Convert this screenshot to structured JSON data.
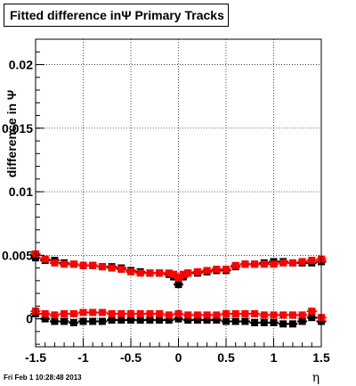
{
  "title": "Fitted difference inΨ   Primary Tracks",
  "footer": "Fri Feb  1 10:28:48 2013",
  "chart_data": {
    "type": "scatter",
    "title": "Fitted difference inΨ   Primary Tracks",
    "xlabel": "η",
    "ylabel": "difference in Ψ",
    "xlim": [
      -1.5,
      1.5
    ],
    "ylim": [
      -0.0022,
      0.022
    ],
    "x_ticks": [
      "-1.5",
      "-1",
      "-0.5",
      "0",
      "0.5",
      "1",
      "1.5"
    ],
    "y_ticks": [
      "0",
      "0.005",
      "0.01",
      "0.015",
      "0.02"
    ],
    "grid": true,
    "series": [
      {
        "color": "#000000",
        "role": "mean",
        "x": [
          -1.5,
          -1.4,
          -1.3,
          -1.2,
          -1.1,
          -1.0,
          -0.9,
          -0.8,
          -0.7,
          -0.6,
          -0.5,
          -0.4,
          -0.3,
          -0.2,
          -0.1,
          -0.05,
          0.0,
          0.05,
          0.1,
          0.2,
          0.3,
          0.4,
          0.5,
          0.6,
          0.7,
          0.8,
          0.9,
          1.0,
          1.1,
          1.2,
          1.3,
          1.4,
          1.5
        ],
        "y": [
          0.0048,
          0.0046,
          0.0046,
          0.0044,
          0.0043,
          0.0042,
          0.0042,
          0.0041,
          0.0041,
          0.004,
          0.0038,
          0.0037,
          0.0036,
          0.0036,
          0.0035,
          0.0033,
          0.0027,
          0.0033,
          0.0036,
          0.0036,
          0.0037,
          0.0038,
          0.0038,
          0.0041,
          0.0043,
          0.0043,
          0.0044,
          0.0045,
          0.0045,
          0.0044,
          0.0044,
          0.0044,
          0.0045
        ]
      },
      {
        "color": "#ff0000",
        "role": "mean",
        "x": [
          -1.5,
          -1.4,
          -1.3,
          -1.2,
          -1.1,
          -1.0,
          -0.9,
          -0.8,
          -0.7,
          -0.6,
          -0.5,
          -0.4,
          -0.3,
          -0.2,
          -0.1,
          -0.05,
          0.0,
          0.05,
          0.1,
          0.2,
          0.3,
          0.4,
          0.5,
          0.6,
          0.7,
          0.8,
          0.9,
          1.0,
          1.1,
          1.2,
          1.3,
          1.4,
          1.5
        ],
        "y": [
          0.0051,
          0.0047,
          0.0044,
          0.0043,
          0.0043,
          0.0042,
          0.0042,
          0.0041,
          0.004,
          0.0039,
          0.0037,
          0.0036,
          0.0036,
          0.0036,
          0.0036,
          0.0035,
          0.0032,
          0.0035,
          0.0036,
          0.0037,
          0.0038,
          0.0039,
          0.0039,
          0.0042,
          0.0043,
          0.0043,
          0.0043,
          0.0043,
          0.0044,
          0.0044,
          0.0045,
          0.0046,
          0.0047
        ]
      },
      {
        "color": "#000000",
        "role": "width",
        "x": [
          -1.5,
          -1.4,
          -1.3,
          -1.2,
          -1.1,
          -1.0,
          -0.9,
          -0.8,
          -0.7,
          -0.6,
          -0.5,
          -0.4,
          -0.3,
          -0.2,
          -0.1,
          0.0,
          0.1,
          0.2,
          0.3,
          0.4,
          0.5,
          0.6,
          0.7,
          0.8,
          0.9,
          1.0,
          1.1,
          1.2,
          1.3,
          1.4,
          1.5
        ],
        "y": [
          0.0004,
          0.0,
          -0.0002,
          -0.0002,
          -0.0003,
          -0.0002,
          -0.0002,
          -0.0002,
          -0.0001,
          -0.0001,
          -0.0001,
          -0.0001,
          -0.0001,
          -0.0001,
          -0.0001,
          0.0,
          -0.0001,
          -0.0001,
          -0.0001,
          -0.0001,
          -0.0002,
          -0.0002,
          -0.0002,
          -0.0003,
          -0.0003,
          -0.0003,
          -0.0004,
          -0.0004,
          -0.0002,
          0.0001,
          -0.0002
        ]
      },
      {
        "color": "#ff0000",
        "role": "width",
        "x": [
          -1.5,
          -1.4,
          -1.3,
          -1.2,
          -1.1,
          -1.0,
          -0.9,
          -0.8,
          -0.7,
          -0.6,
          -0.5,
          -0.4,
          -0.3,
          -0.2,
          -0.1,
          0.0,
          0.1,
          0.2,
          0.3,
          0.4,
          0.5,
          0.6,
          0.7,
          0.8,
          0.9,
          1.0,
          1.1,
          1.2,
          1.3,
          1.4,
          1.5
        ],
        "y": [
          0.0006,
          0.0004,
          0.0003,
          0.0004,
          0.0004,
          0.0005,
          0.0005,
          0.0005,
          0.0004,
          0.0004,
          0.0004,
          0.0004,
          0.0004,
          0.0004,
          0.0003,
          0.0004,
          0.0003,
          0.0003,
          0.0003,
          0.0003,
          0.0004,
          0.0004,
          0.0004,
          0.0004,
          0.0003,
          0.0003,
          0.0003,
          0.0003,
          0.0003,
          0.0006,
          0.0001
        ]
      }
    ]
  }
}
